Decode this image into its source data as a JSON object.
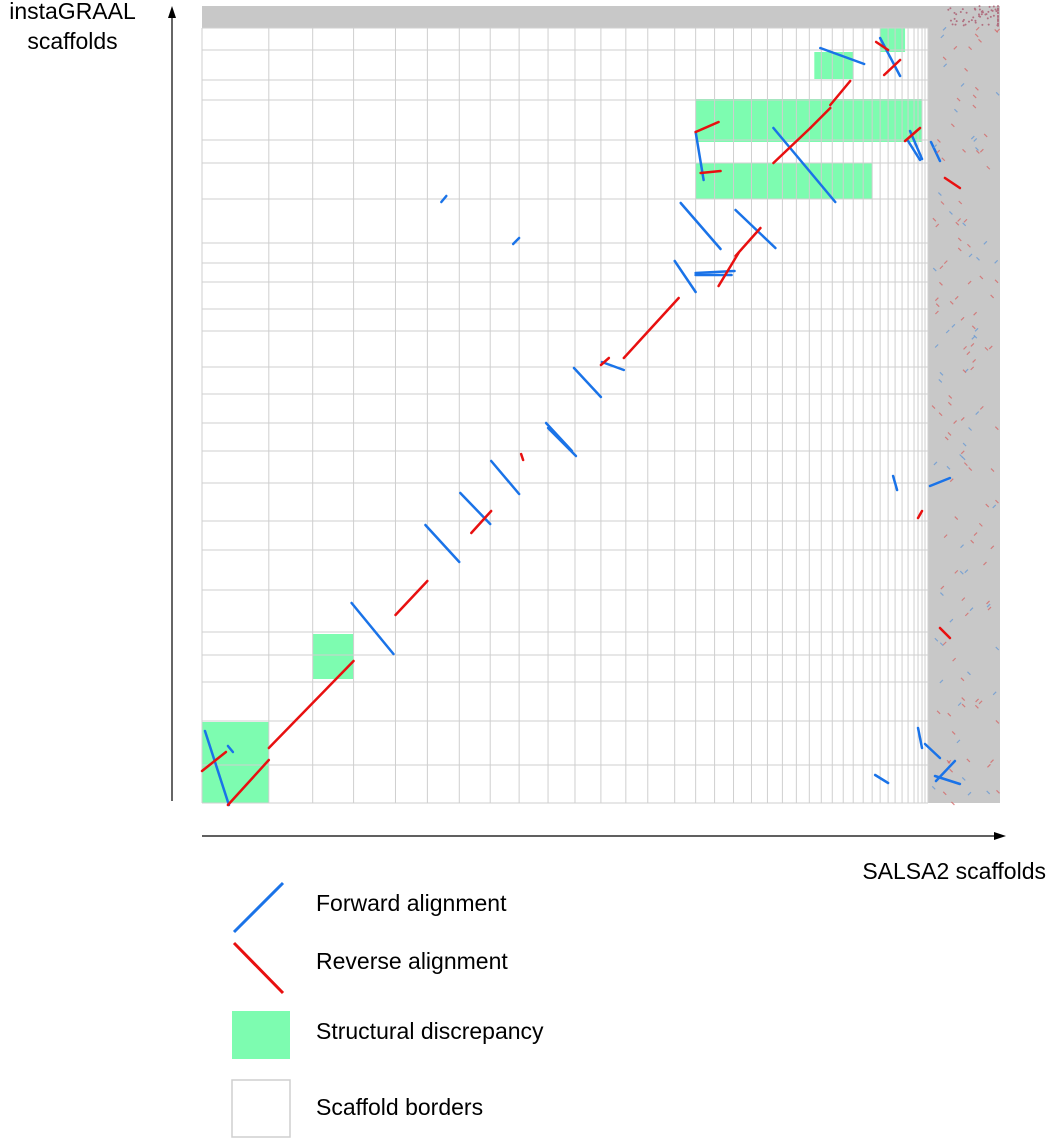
{
  "axes": {
    "y_title": "instaGRAAL\nscaffolds",
    "x_title": "SALSA2 scaffolds"
  },
  "legend": {
    "forward": "Forward alignment",
    "reverse": "Reverse alignment",
    "discrepancy": "Structural discrepancy",
    "borders": "Scaffold borders"
  },
  "colors": {
    "forward": "#1a73e8",
    "reverse": "#e81010",
    "discrepancy": "#7dfcb0",
    "grid": "#cfcfcf",
    "unplaced": "#c8c8c8",
    "axis": "#000000"
  },
  "chart_data": {
    "type": "scatter",
    "description_of_encoding": "",
    "x_scaffold_borders": [
      0,
      67,
      111,
      152,
      194,
      226,
      258,
      289,
      318,
      347,
      374,
      400,
      425,
      447,
      474,
      495,
      514,
      533,
      551,
      567,
      582,
      596,
      609,
      621,
      632,
      643,
      653,
      663,
      672,
      680,
      688,
      695,
      702,
      708,
      714,
      718,
      722,
      725,
      728
    ],
    "y_scaffold_borders": [
      0,
      22,
      52,
      72,
      112,
      135,
      171,
      215,
      235,
      254,
      281,
      303,
      339,
      366,
      395,
      423,
      455,
      493,
      522,
      562,
      604,
      627,
      654,
      693,
      737,
      775
    ],
    "forward_segments": [
      [
        3,
        703,
        27,
        777
      ],
      [
        26,
        718,
        31,
        724
      ],
      [
        150,
        575,
        192,
        626
      ],
      [
        224,
        497,
        258,
        534
      ],
      [
        259,
        465,
        289,
        496
      ],
      [
        290,
        433,
        318,
        466
      ],
      [
        345,
        395,
        371,
        423
      ],
      [
        373,
        340,
        400,
        369
      ],
      [
        347,
        400,
        375,
        428
      ],
      [
        401,
        334,
        423,
        342
      ],
      [
        474,
        233,
        495,
        264
      ],
      [
        480,
        175,
        520,
        221
      ],
      [
        495,
        245,
        534,
        243
      ],
      [
        495,
        247,
        531,
        247
      ],
      [
        535,
        182,
        575,
        220
      ],
      [
        573,
        100,
        635,
        174
      ],
      [
        620,
        20,
        664,
        36
      ],
      [
        495,
        104,
        503,
        152
      ],
      [
        680,
        10,
        700,
        48
      ],
      [
        708,
        113,
        720,
        132
      ],
      [
        710,
        103,
        722,
        131
      ],
      [
        731,
        114,
        740,
        133
      ],
      [
        675,
        747,
        688,
        755
      ],
      [
        693,
        448,
        697,
        462
      ],
      [
        730,
        458,
        750,
        450
      ],
      [
        735,
        748,
        760,
        756
      ],
      [
        718,
        700,
        722,
        720
      ],
      [
        725,
        716,
        740,
        730
      ],
      [
        736,
        753,
        755,
        733
      ],
      [
        240,
        174,
        245,
        168
      ],
      [
        312,
        216,
        318,
        210
      ]
    ],
    "reverse_segments": [
      [
        0,
        743,
        24,
        724
      ],
      [
        26,
        777,
        67,
        732
      ],
      [
        67,
        720,
        152,
        633
      ],
      [
        194,
        587,
        226,
        553
      ],
      [
        270,
        505,
        290,
        483
      ],
      [
        400,
        337,
        408,
        330
      ],
      [
        423,
        330,
        478,
        270
      ],
      [
        495,
        104,
        518,
        94
      ],
      [
        500,
        145,
        520,
        143
      ],
      [
        518,
        258,
        538,
        225
      ],
      [
        535,
        228,
        560,
        200
      ],
      [
        573,
        135,
        610,
        100
      ],
      [
        610,
        100,
        630,
        80
      ],
      [
        630,
        77,
        650,
        53
      ],
      [
        676,
        14,
        688,
        22
      ],
      [
        684,
        47,
        700,
        32
      ],
      [
        705,
        113,
        720,
        100
      ],
      [
        718,
        490,
        722,
        483
      ],
      [
        745,
        150,
        760,
        160
      ],
      [
        740,
        600,
        750,
        610
      ],
      [
        320,
        426,
        322,
        432
      ]
    ]
  }
}
